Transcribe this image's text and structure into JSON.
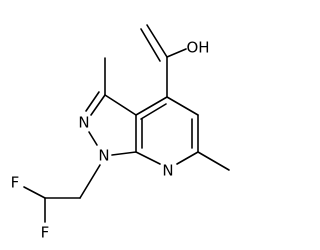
{
  "atoms": [
    {
      "label": "OH"
    },
    {
      "label": "N"
    },
    {
      "label": "N"
    },
    {
      "label": "N"
    },
    {
      "label": "F"
    },
    {
      "label": "F"
    }
  ]
}
